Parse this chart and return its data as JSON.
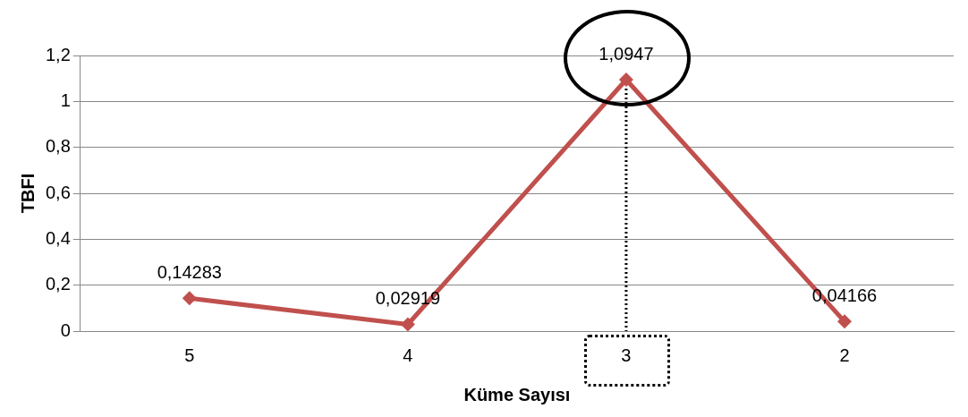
{
  "chart_data": {
    "type": "line",
    "xlabel": "Küme Sayısı",
    "ylabel": "TBFI",
    "categories": [
      "5",
      "4",
      "3",
      "2"
    ],
    "series": [
      {
        "color": "#c0504d",
        "values": [
          0.14283,
          0.02919,
          1.0947,
          0.04166
        ],
        "value_labels": [
          "0,14283",
          "0,02919",
          "1,0947",
          "0,04166"
        ]
      }
    ],
    "ylim": [
      0,
      1.2
    ],
    "yticks": [
      0,
      {
        "value": 0.2,
        "label": "0,2"
      },
      {
        "value": 0.4,
        "label": "0,4"
      },
      {
        "value": 0.6,
        "label": "0,6"
      },
      {
        "value": 0.8,
        "label": "0,8"
      },
      1,
      {
        "value": 1.2,
        "label": "1,2"
      }
    ],
    "grid": "y",
    "legend": false,
    "marker": "diamond",
    "line_style": "solid",
    "ref_lines": [
      {
        "axis": "x",
        "value": "3",
        "color": "#000000",
        "line_style": "dotted"
      }
    ]
  }
}
